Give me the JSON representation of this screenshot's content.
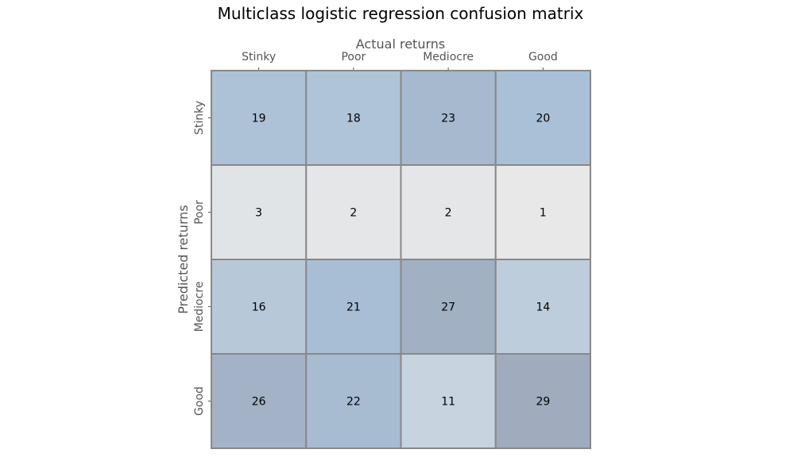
{
  "chart_data": {
    "type": "heatmap",
    "title": "Multiclass logistic regression confusion matrix",
    "xlabel": "Actual returns",
    "ylabel": "Predicted returns",
    "x_categories": [
      "Stinky",
      "Poor",
      "Mediocre",
      "Good"
    ],
    "y_categories": [
      "Stinky",
      "Poor",
      "Mediocre",
      "Good"
    ],
    "x_axis_position": "top",
    "values": [
      [
        19,
        18,
        23,
        20
      ],
      [
        3,
        2,
        2,
        1
      ],
      [
        16,
        21,
        27,
        14
      ],
      [
        26,
        22,
        11,
        29
      ]
    ],
    "color_range": [
      1,
      29
    ],
    "colormap": {
      "low": "#e8e8e8",
      "mid": "#a8bfd5",
      "high": "#a0abbd"
    },
    "cell_border_color": "#888888",
    "annotations": true,
    "colorbar": false
  }
}
